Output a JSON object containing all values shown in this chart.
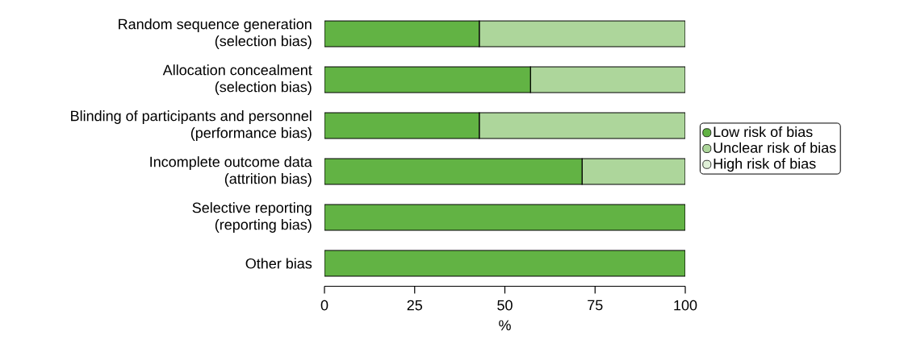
{
  "chart_data": {
    "type": "bar",
    "orientation": "horizontal",
    "stacked": true,
    "categories": [
      "Random sequence generation\n(selection bias)",
      "Allocation concealment\n(selection bias)",
      "Blinding of participants and personnel\n(performance bias)",
      "Incomplete outcome data\n(attrition bias)",
      "Selective reporting\n(reporting bias)",
      "Other bias"
    ],
    "series": [
      {
        "name": "Low risk of bias",
        "color": "#62b344",
        "values": [
          42.9,
          57.1,
          42.9,
          71.4,
          100,
          100
        ]
      },
      {
        "name": "Unclear risk of bias",
        "color": "#add69b",
        "values": [
          57.1,
          42.9,
          57.1,
          28.6,
          0,
          0
        ]
      },
      {
        "name": "High risk of bias",
        "color": "#e0f0d8",
        "values": [
          0,
          0,
          0,
          0,
          0,
          0
        ]
      }
    ],
    "xlabel": "%",
    "xlim": [
      0,
      100
    ],
    "xticks": [
      0,
      25,
      50,
      75,
      100
    ],
    "grid": false,
    "legend": "right"
  }
}
